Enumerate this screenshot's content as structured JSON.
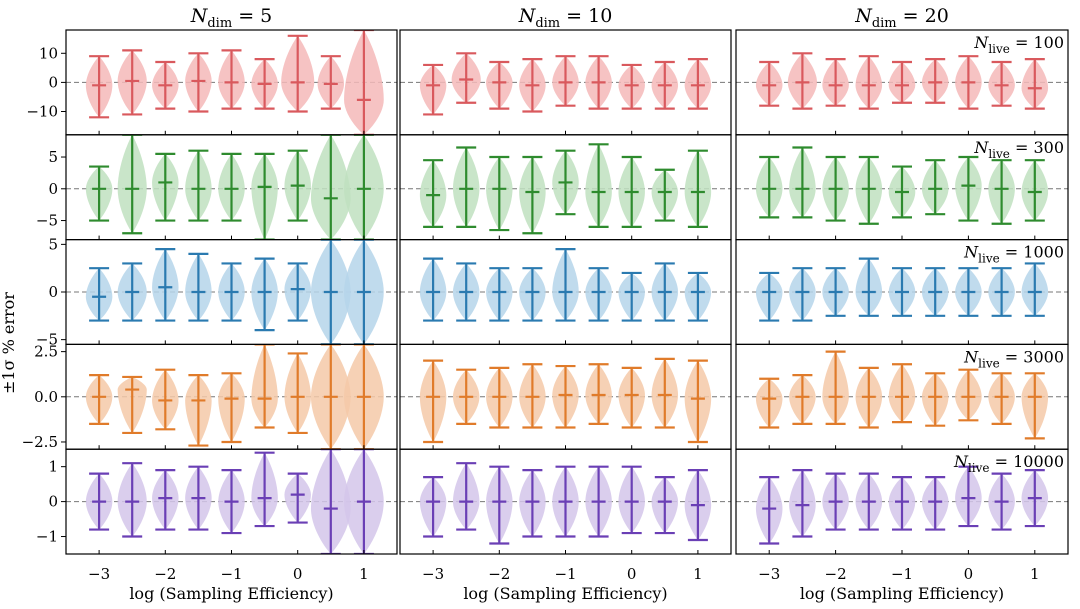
{
  "chart_data": {
    "type": "violin",
    "title": "",
    "ylabel": "±1σ % error",
    "xlabel": "log (Sampling Efficiency)",
    "x_ticks": [
      -3,
      -2,
      -1,
      0,
      1
    ],
    "x_positions": [
      -3,
      -2.5,
      -2,
      -1.5,
      -1,
      -0.5,
      0,
      0.5,
      1
    ],
    "columns": [
      {
        "title": "N_dim = 5",
        "label_main": "N",
        "label_sub": "dim",
        "label_value": "= 5"
      },
      {
        "title": "N_dim = 10",
        "label_main": "N",
        "label_sub": "dim",
        "label_value": "= 10"
      },
      {
        "title": "N_dim = 20",
        "label_main": "N",
        "label_sub": "dim",
        "label_value": "= 20"
      }
    ],
    "rows": [
      {
        "label": "N_live = 100",
        "label_main": "N",
        "label_sub": "live",
        "label_value": "= 100",
        "color": "#d9595d",
        "fill": "#f4b8b9",
        "ylim": [
          -18,
          18
        ],
        "yticks": [
          -10,
          0,
          10
        ],
        "ytick_labels": [
          "−10",
          "0",
          "10"
        ],
        "series": [
          {
            "median": [
              -1,
              0.5,
              -1,
              0.5,
              0,
              -0.5,
              0,
              -0.5,
              -6
            ],
            "low": [
              -12,
              -11,
              -9,
              -10,
              -9,
              -9,
              -10,
              -9,
              -18
            ],
            "high": [
              9,
              11,
              7,
              10,
              11,
              8,
              16,
              9,
              18
            ],
            "width": [
              0.2,
              0.22,
              0.2,
              0.2,
              0.2,
              0.2,
              0.25,
              0.2,
              0.3
            ]
          },
          {
            "median": [
              -1,
              1,
              0,
              -1,
              0,
              0,
              -1,
              -1,
              -1
            ],
            "low": [
              -11,
              -7,
              -9,
              -10,
              -8,
              -9,
              -9,
              -9,
              -9
            ],
            "high": [
              6,
              10,
              7,
              8,
              9,
              9,
              6,
              7,
              8
            ],
            "width": [
              0.2,
              0.22,
              0.2,
              0.2,
              0.2,
              0.2,
              0.2,
              0.2,
              0.2
            ]
          },
          {
            "median": [
              -1,
              0,
              -1,
              -1,
              -1,
              0,
              0,
              -1,
              -2
            ],
            "low": [
              -8,
              -9,
              -8,
              -9,
              -7,
              -7,
              -9,
              -8,
              -9
            ],
            "high": [
              7,
              10,
              8,
              9,
              7,
              8,
              9,
              7,
              8
            ],
            "width": [
              0.2,
              0.22,
              0.2,
              0.2,
              0.2,
              0.2,
              0.2,
              0.2,
              0.2
            ]
          }
        ]
      },
      {
        "label": "N_live = 300",
        "label_main": "N",
        "label_sub": "live",
        "label_value": "= 300",
        "color": "#2e8b2e",
        "fill": "#bfe0bf",
        "ylim": [
          -8,
          8.5
        ],
        "yticks": [
          -5,
          0,
          5
        ],
        "ytick_labels": [
          "−5",
          "0",
          "5"
        ],
        "series": [
          {
            "median": [
              0,
              0,
              1,
              0,
              0,
              0.3,
              0.5,
              -1.5,
              0
            ],
            "low": [
              -5,
              -7,
              -5,
              -5,
              -5,
              -8,
              -5,
              -8,
              -8
            ],
            "high": [
              3.5,
              8.5,
              5.5,
              6,
              5.5,
              5.5,
              6,
              8.5,
              8.5
            ],
            "width": [
              0.2,
              0.22,
              0.2,
              0.2,
              0.2,
              0.2,
              0.2,
              0.3,
              0.3
            ]
          },
          {
            "median": [
              -1,
              0,
              0,
              -0.5,
              1,
              -0.5,
              -0.5,
              -0.5,
              -0.5
            ],
            "low": [
              -6,
              -6,
              -6.5,
              -7,
              -4,
              -6,
              -6,
              -5,
              -6
            ],
            "high": [
              4.5,
              6.5,
              5,
              5,
              6,
              7,
              5,
              3,
              6
            ],
            "width": [
              0.2,
              0.2,
              0.2,
              0.2,
              0.2,
              0.2,
              0.2,
              0.2,
              0.2
            ]
          },
          {
            "median": [
              0,
              0,
              0,
              0,
              -0.5,
              0,
              0.5,
              0,
              -0.5
            ],
            "low": [
              -4.5,
              -4.5,
              -5,
              -5.5,
              -4.5,
              -4,
              -5,
              -5.5,
              -5
            ],
            "high": [
              5,
              6.5,
              5,
              5,
              3.5,
              4.5,
              5,
              4.5,
              4.5
            ],
            "width": [
              0.2,
              0.2,
              0.2,
              0.2,
              0.2,
              0.2,
              0.2,
              0.2,
              0.2
            ]
          }
        ]
      },
      {
        "label": "N_live = 1000",
        "label_main": "N",
        "label_sub": "live",
        "label_value": "= 1000",
        "color": "#2a7ab0",
        "fill": "#b5d5ea",
        "ylim": [
          -5.5,
          5.5
        ],
        "yticks": [
          -5,
          0,
          5
        ],
        "ytick_labels": [
          "−5",
          "0",
          "5"
        ],
        "series": [
          {
            "median": [
              -0.5,
              0,
              0.5,
              0,
              0,
              0,
              0.3,
              0,
              0
            ],
            "low": [
              -3,
              -3,
              -3,
              -3,
              -3,
              -4,
              -3,
              -5.5,
              -5.5
            ],
            "high": [
              2.5,
              3,
              4.5,
              4,
              3,
              3.5,
              3,
              5.5,
              5.5
            ],
            "width": [
              0.2,
              0.22,
              0.2,
              0.2,
              0.2,
              0.2,
              0.2,
              0.3,
              0.3
            ]
          },
          {
            "median": [
              0,
              0,
              0,
              0,
              0,
              0,
              0,
              0,
              0
            ],
            "low": [
              -3,
              -3,
              -3,
              -3,
              -3,
              -3,
              -3,
              -3,
              -3
            ],
            "high": [
              3.5,
              3,
              2.5,
              2.5,
              4.5,
              2.5,
              2,
              3,
              2
            ],
            "width": [
              0.2,
              0.2,
              0.2,
              0.2,
              0.2,
              0.2,
              0.2,
              0.2,
              0.2
            ]
          },
          {
            "median": [
              0,
              0,
              0,
              0,
              0,
              0,
              0,
              0,
              0
            ],
            "low": [
              -3,
              -3,
              -2.5,
              -2.5,
              -2.5,
              -2.5,
              -2.5,
              -2.5,
              -2.5
            ],
            "high": [
              2,
              2.5,
              2.5,
              3.5,
              2.5,
              2.5,
              2.5,
              2.5,
              3
            ],
            "width": [
              0.2,
              0.2,
              0.2,
              0.2,
              0.2,
              0.2,
              0.2,
              0.2,
              0.2
            ]
          }
        ]
      },
      {
        "label": "N_live = 3000",
        "label_main": "N",
        "label_sub": "live",
        "label_value": "= 3000",
        "color": "#e07b2a",
        "fill": "#f5c9a8",
        "ylim": [
          -2.9,
          2.9
        ],
        "yticks": [
          -2.5,
          0,
          2.5
        ],
        "ytick_labels": [
          "−2.5",
          "0.0",
          "2.5"
        ],
        "series": [
          {
            "median": [
              0,
              0.4,
              -0.2,
              -0.2,
              -0.1,
              -0.1,
              0,
              0,
              0
            ],
            "low": [
              -1.5,
              -2,
              -1.8,
              -2.7,
              -2.5,
              -1.7,
              -2,
              -2.9,
              -2.9
            ],
            "high": [
              1.2,
              1.1,
              1.5,
              1.2,
              1.3,
              2.9,
              2.4,
              2.9,
              2.9
            ],
            "width": [
              0.2,
              0.22,
              0.2,
              0.2,
              0.2,
              0.2,
              0.2,
              0.3,
              0.3
            ]
          },
          {
            "median": [
              0,
              0,
              0,
              0,
              0.1,
              0.1,
              0.1,
              0.1,
              -0.1
            ],
            "low": [
              -2.5,
              -1.5,
              -1.7,
              -1.7,
              -1.7,
              -1.5,
              -1.7,
              -1.7,
              -2.5
            ],
            "high": [
              2,
              1.5,
              1.6,
              1.8,
              1.7,
              1.8,
              1.6,
              2.1,
              2
            ],
            "width": [
              0.2,
              0.2,
              0.2,
              0.2,
              0.2,
              0.2,
              0.2,
              0.2,
              0.2
            ]
          },
          {
            "median": [
              -0.1,
              0,
              0,
              0,
              0,
              0,
              0,
              0,
              0
            ],
            "low": [
              -1.7,
              -1.5,
              -1.5,
              -1.7,
              -1.4,
              -1.6,
              -1.3,
              -1.5,
              -2.3
            ],
            "high": [
              1,
              1.2,
              2.5,
              1.6,
              1.8,
              1.3,
              1.5,
              1.3,
              1.3
            ],
            "width": [
              0.2,
              0.2,
              0.2,
              0.2,
              0.2,
              0.2,
              0.2,
              0.2,
              0.2
            ]
          }
        ]
      },
      {
        "label": "N_live = 10000",
        "label_main": "N",
        "label_sub": "live",
        "label_value": "= 10000",
        "color": "#6a3fb5",
        "fill": "#d4c6ea",
        "ylim": [
          -1.5,
          1.5
        ],
        "yticks": [
          -1,
          0,
          1
        ],
        "ytick_labels": [
          "−1",
          "0",
          "1"
        ],
        "series": [
          {
            "median": [
              0,
              0,
              0.1,
              0.1,
              0,
              0.1,
              0.2,
              -0.2,
              0
            ],
            "low": [
              -0.8,
              -1,
              -0.8,
              -0.8,
              -0.9,
              -0.7,
              -0.6,
              -1.5,
              -1.5
            ],
            "high": [
              0.8,
              1.1,
              0.9,
              1,
              0.9,
              1.4,
              0.8,
              1.5,
              1.5
            ],
            "width": [
              0.2,
              0.22,
              0.2,
              0.2,
              0.2,
              0.2,
              0.2,
              0.3,
              0.3
            ]
          },
          {
            "median": [
              0,
              0,
              0,
              0,
              0,
              0,
              0,
              0,
              -0.1
            ],
            "low": [
              -1,
              -0.8,
              -1.2,
              -1,
              -1,
              -1,
              -0.9,
              -0.9,
              -1.1
            ],
            "high": [
              0.7,
              1.1,
              1,
              0.9,
              1,
              1,
              1,
              0.7,
              0.9
            ],
            "width": [
              0.2,
              0.2,
              0.2,
              0.2,
              0.2,
              0.2,
              0.2,
              0.2,
              0.2
            ]
          },
          {
            "median": [
              -0.2,
              -0.1,
              0,
              0,
              0,
              0,
              0.1,
              0,
              0.1
            ],
            "low": [
              -1.2,
              -1,
              -0.8,
              -0.8,
              -0.8,
              -0.8,
              -0.7,
              -0.8,
              -0.7
            ],
            "high": [
              0.7,
              0.9,
              0.8,
              0.8,
              0.7,
              0.7,
              1,
              0.8,
              0.9
            ],
            "width": [
              0.2,
              0.2,
              0.2,
              0.2,
              0.2,
              0.2,
              0.2,
              0.2,
              0.2
            ]
          }
        ]
      }
    ]
  }
}
